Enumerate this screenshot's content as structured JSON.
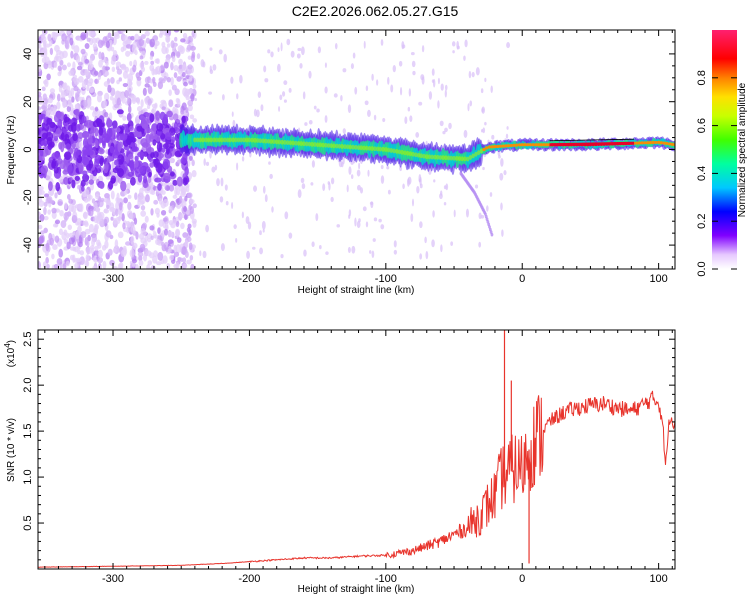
{
  "title": "C2E2.2026.062.05.27.G15",
  "colors": {
    "snr_line": "#e8342c",
    "trace_core": "#e8002a",
    "axis": "#000000"
  },
  "chart_data": [
    {
      "type": "heatmap",
      "name": "spectrogram",
      "xlabel": "Height of straight line (km)",
      "ylabel": "Frequency (Hz)",
      "xlim": [
        -355,
        112
      ],
      "ylim": [
        -50,
        50
      ],
      "xticks": [
        -300,
        -200,
        -100,
        0,
        100
      ],
      "yticks": [
        -40,
        -20,
        0,
        20,
        40
      ],
      "colorbar": {
        "label": "Normalized spectral amplitude",
        "range": [
          0.0,
          1.0
        ],
        "ticks": [
          "0.0",
          "0.2",
          "0.4",
          "0.6",
          "0.8"
        ]
      },
      "ridge": [
        {
          "x": -350,
          "y": 0
        },
        {
          "x": -300,
          "y": 1
        },
        {
          "x": -250,
          "y": 4
        },
        {
          "x": -200,
          "y": 4
        },
        {
          "x": -150,
          "y": 2
        },
        {
          "x": -100,
          "y": 0
        },
        {
          "x": -70,
          "y": -3
        },
        {
          "x": -40,
          "y": -4
        },
        {
          "x": -25,
          "y": 1
        },
        {
          "x": 0,
          "y": 2
        },
        {
          "x": 50,
          "y": 2
        },
        {
          "x": 100,
          "y": 3
        },
        {
          "x": 112,
          "y": 2
        }
      ],
      "branch": [
        {
          "x": -45,
          "y": -10
        },
        {
          "x": -35,
          "y": -18
        },
        {
          "x": -27,
          "y": -27
        },
        {
          "x": -22,
          "y": -36
        }
      ]
    },
    {
      "type": "line",
      "name": "snr",
      "xlabel": "Height of straight line (km)",
      "ylabel": "SNR (10 * v/v)",
      "y_multiplier": "(x10",
      "y_multiplier_exp": "4",
      "y_multiplier_close": ")",
      "xlim": [
        -355,
        112
      ],
      "ylim": [
        0,
        2.6
      ],
      "xticks": [
        -300,
        -200,
        -100,
        0,
        100
      ],
      "yticks": [
        0.5,
        1.0,
        1.5,
        2.0,
        2.5
      ],
      "series": [
        {
          "name": "SNR",
          "x": [
            -355,
            -300,
            -250,
            -220,
            -200,
            -180,
            -160,
            -140,
            -120,
            -100,
            -80,
            -60,
            -40,
            -30,
            -20,
            -15,
            -10,
            -5,
            0,
            5,
            10,
            20,
            30,
            40,
            50,
            60,
            70,
            80,
            90,
            95,
            100,
            103,
            105,
            108,
            112
          ],
          "y": [
            0.02,
            0.03,
            0.04,
            0.06,
            0.08,
            0.1,
            0.12,
            0.12,
            0.14,
            0.15,
            0.2,
            0.3,
            0.45,
            0.6,
            0.8,
            1.0,
            1.05,
            1.1,
            1.1,
            1.3,
            1.4,
            1.6,
            1.7,
            1.75,
            1.78,
            1.8,
            1.75,
            1.72,
            1.8,
            1.85,
            1.82,
            1.6,
            1.1,
            1.65,
            1.6
          ]
        }
      ],
      "spikes": [
        {
          "x": -13,
          "y": 2.62
        },
        {
          "x": -8,
          "y": 2.05
        },
        {
          "x": 5,
          "y": 0.06
        }
      ]
    }
  ]
}
